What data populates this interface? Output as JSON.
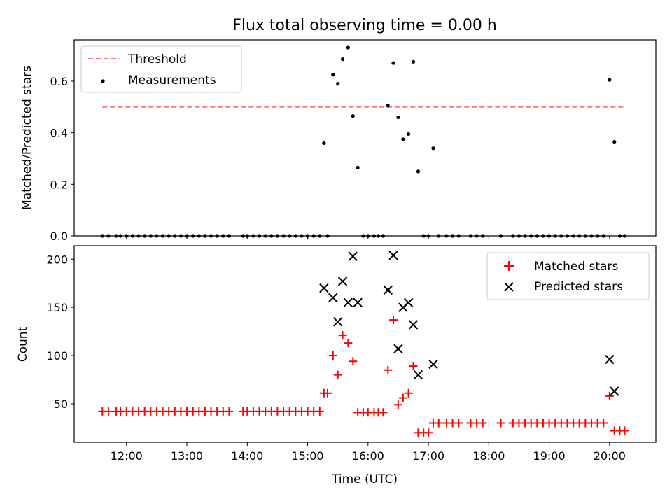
{
  "chart_data": [
    {
      "type": "line",
      "title": "Flux total observing time = 0.00 h",
      "xlabel": "",
      "ylabel": "Matched/Predicted stars",
      "xlim": [
        11.133,
        20.767
      ],
      "ylim": [
        0.0,
        0.76
      ],
      "yticks": [
        0.0,
        0.2,
        0.4,
        0.6
      ],
      "ytick_labels": [
        "0.0",
        "0.2",
        "0.4",
        "0.6"
      ],
      "xticks": [
        12,
        13,
        14,
        15,
        16,
        17,
        18,
        19,
        20
      ],
      "legend_position": "top-left",
      "grid": false,
      "series": [
        {
          "name": "Threshold",
          "kind": "dashed-line",
          "color": "#ff7777",
          "x": [
            11.6,
            20.27
          ],
          "y": [
            0.5,
            0.5
          ]
        },
        {
          "name": "Measurements",
          "kind": "scatter",
          "color": "#000000",
          "x": [
            11.6,
            11.7,
            11.83,
            11.9,
            12.0,
            12.1,
            12.2,
            12.3,
            12.4,
            12.5,
            12.6,
            12.7,
            12.8,
            12.9,
            13.0,
            13.1,
            13.2,
            13.3,
            13.4,
            13.5,
            13.6,
            13.7,
            13.93,
            14.0,
            14.1,
            14.2,
            14.3,
            14.4,
            14.5,
            14.6,
            14.7,
            14.8,
            14.9,
            15.0,
            15.1,
            15.2,
            15.27,
            15.33,
            15.42,
            15.5,
            15.58,
            15.67,
            15.75,
            15.83,
            15.92,
            16.0,
            16.1,
            16.17,
            16.25,
            16.33,
            16.42,
            16.5,
            16.58,
            16.67,
            16.75,
            16.83,
            16.92,
            17.0,
            17.08,
            17.17,
            17.3,
            17.4,
            17.5,
            17.7,
            17.8,
            17.9,
            18.2,
            18.4,
            18.5,
            18.6,
            18.7,
            18.8,
            18.9,
            19.0,
            19.1,
            19.2,
            19.3,
            19.4,
            19.5,
            19.6,
            19.7,
            19.8,
            19.9,
            20.0,
            20.08,
            20.17,
            20.25
          ],
          "y": [
            0,
            0,
            0,
            0,
            0,
            0,
            0,
            0,
            0,
            0,
            0,
            0,
            0,
            0,
            0,
            0,
            0,
            0,
            0,
            0,
            0,
            0,
            0,
            0,
            0,
            0,
            0,
            0,
            0,
            0,
            0,
            0,
            0,
            0,
            0,
            0,
            0.36,
            0,
            0.625,
            0.59,
            0.685,
            0.73,
            0.465,
            0.265,
            0,
            0,
            0,
            0,
            0,
            0.505,
            0.67,
            0.46,
            0.375,
            0.395,
            0.675,
            0.25,
            0,
            0,
            0.34,
            0,
            0,
            0,
            0,
            0,
            0,
            0,
            0,
            0,
            0,
            0,
            0,
            0,
            0,
            0,
            0,
            0,
            0,
            0,
            0,
            0,
            0,
            0,
            0,
            0.605,
            0.365,
            0,
            0
          ]
        }
      ]
    },
    {
      "type": "scatter",
      "title": "",
      "xlabel": "Time (UTC)",
      "ylabel": "Count",
      "xlim": [
        11.133,
        20.767
      ],
      "ylim": [
        10,
        214
      ],
      "yticks": [
        50,
        100,
        150,
        200
      ],
      "ytick_labels": [
        "50",
        "100",
        "150",
        "200"
      ],
      "xticks": [
        12,
        13,
        14,
        15,
        16,
        17,
        18,
        19,
        20
      ],
      "xtick_labels": [
        "12:00",
        "13:00",
        "14:00",
        "15:00",
        "16:00",
        "17:00",
        "18:00",
        "19:00",
        "20:00"
      ],
      "legend_position": "top-right",
      "grid": false,
      "series": [
        {
          "name": "Matched stars",
          "marker": "plus",
          "color": "#ff0000",
          "x": [
            11.6,
            11.7,
            11.83,
            11.9,
            12.0,
            12.1,
            12.2,
            12.3,
            12.4,
            12.5,
            12.6,
            12.7,
            12.8,
            12.9,
            13.0,
            13.1,
            13.2,
            13.3,
            13.4,
            13.5,
            13.6,
            13.7,
            13.93,
            14.0,
            14.1,
            14.2,
            14.3,
            14.4,
            14.5,
            14.6,
            14.7,
            14.8,
            14.9,
            15.0,
            15.1,
            15.2,
            15.27,
            15.33,
            15.42,
            15.5,
            15.58,
            15.67,
            15.75,
            15.83,
            15.92,
            16.0,
            16.1,
            16.17,
            16.25,
            16.33,
            16.42,
            16.5,
            16.58,
            16.67,
            16.75,
            16.83,
            16.92,
            17.0,
            17.08,
            17.17,
            17.3,
            17.4,
            17.5,
            17.7,
            17.8,
            17.9,
            18.2,
            18.4,
            18.5,
            18.6,
            18.7,
            18.8,
            18.9,
            19.0,
            19.1,
            19.2,
            19.3,
            19.4,
            19.5,
            19.6,
            19.7,
            19.8,
            19.9,
            20.0,
            20.08,
            20.17,
            20.25
          ],
          "y": [
            42,
            42,
            42,
            42,
            42,
            42,
            42,
            42,
            42,
            42,
            42,
            42,
            42,
            42,
            42,
            42,
            42,
            42,
            42,
            42,
            42,
            42,
            42,
            42,
            42,
            42,
            42,
            42,
            42,
            42,
            42,
            42,
            42,
            42,
            42,
            42,
            61,
            61,
            100,
            80,
            121,
            113,
            94,
            41,
            41,
            41,
            41,
            41,
            41,
            85,
            137,
            49,
            56,
            61,
            89,
            20,
            20,
            20,
            30,
            30,
            30,
            30,
            30,
            30,
            30,
            30,
            30,
            30,
            30,
            30,
            30,
            30,
            30,
            30,
            30,
            30,
            30,
            30,
            30,
            30,
            30,
            30,
            30,
            58,
            22,
            22,
            22
          ]
        },
        {
          "name": "Predicted stars",
          "marker": "x",
          "color": "#000000",
          "x": [
            15.27,
            15.42,
            15.5,
            15.58,
            15.67,
            15.75,
            15.83,
            16.33,
            16.42,
            16.5,
            16.58,
            16.67,
            16.75,
            16.83,
            17.08,
            20.0,
            20.08
          ],
          "y": [
            170,
            160,
            135,
            177,
            155,
            203,
            155,
            168,
            204,
            107,
            150,
            155,
            132,
            80,
            91,
            96,
            63
          ]
        }
      ]
    }
  ]
}
